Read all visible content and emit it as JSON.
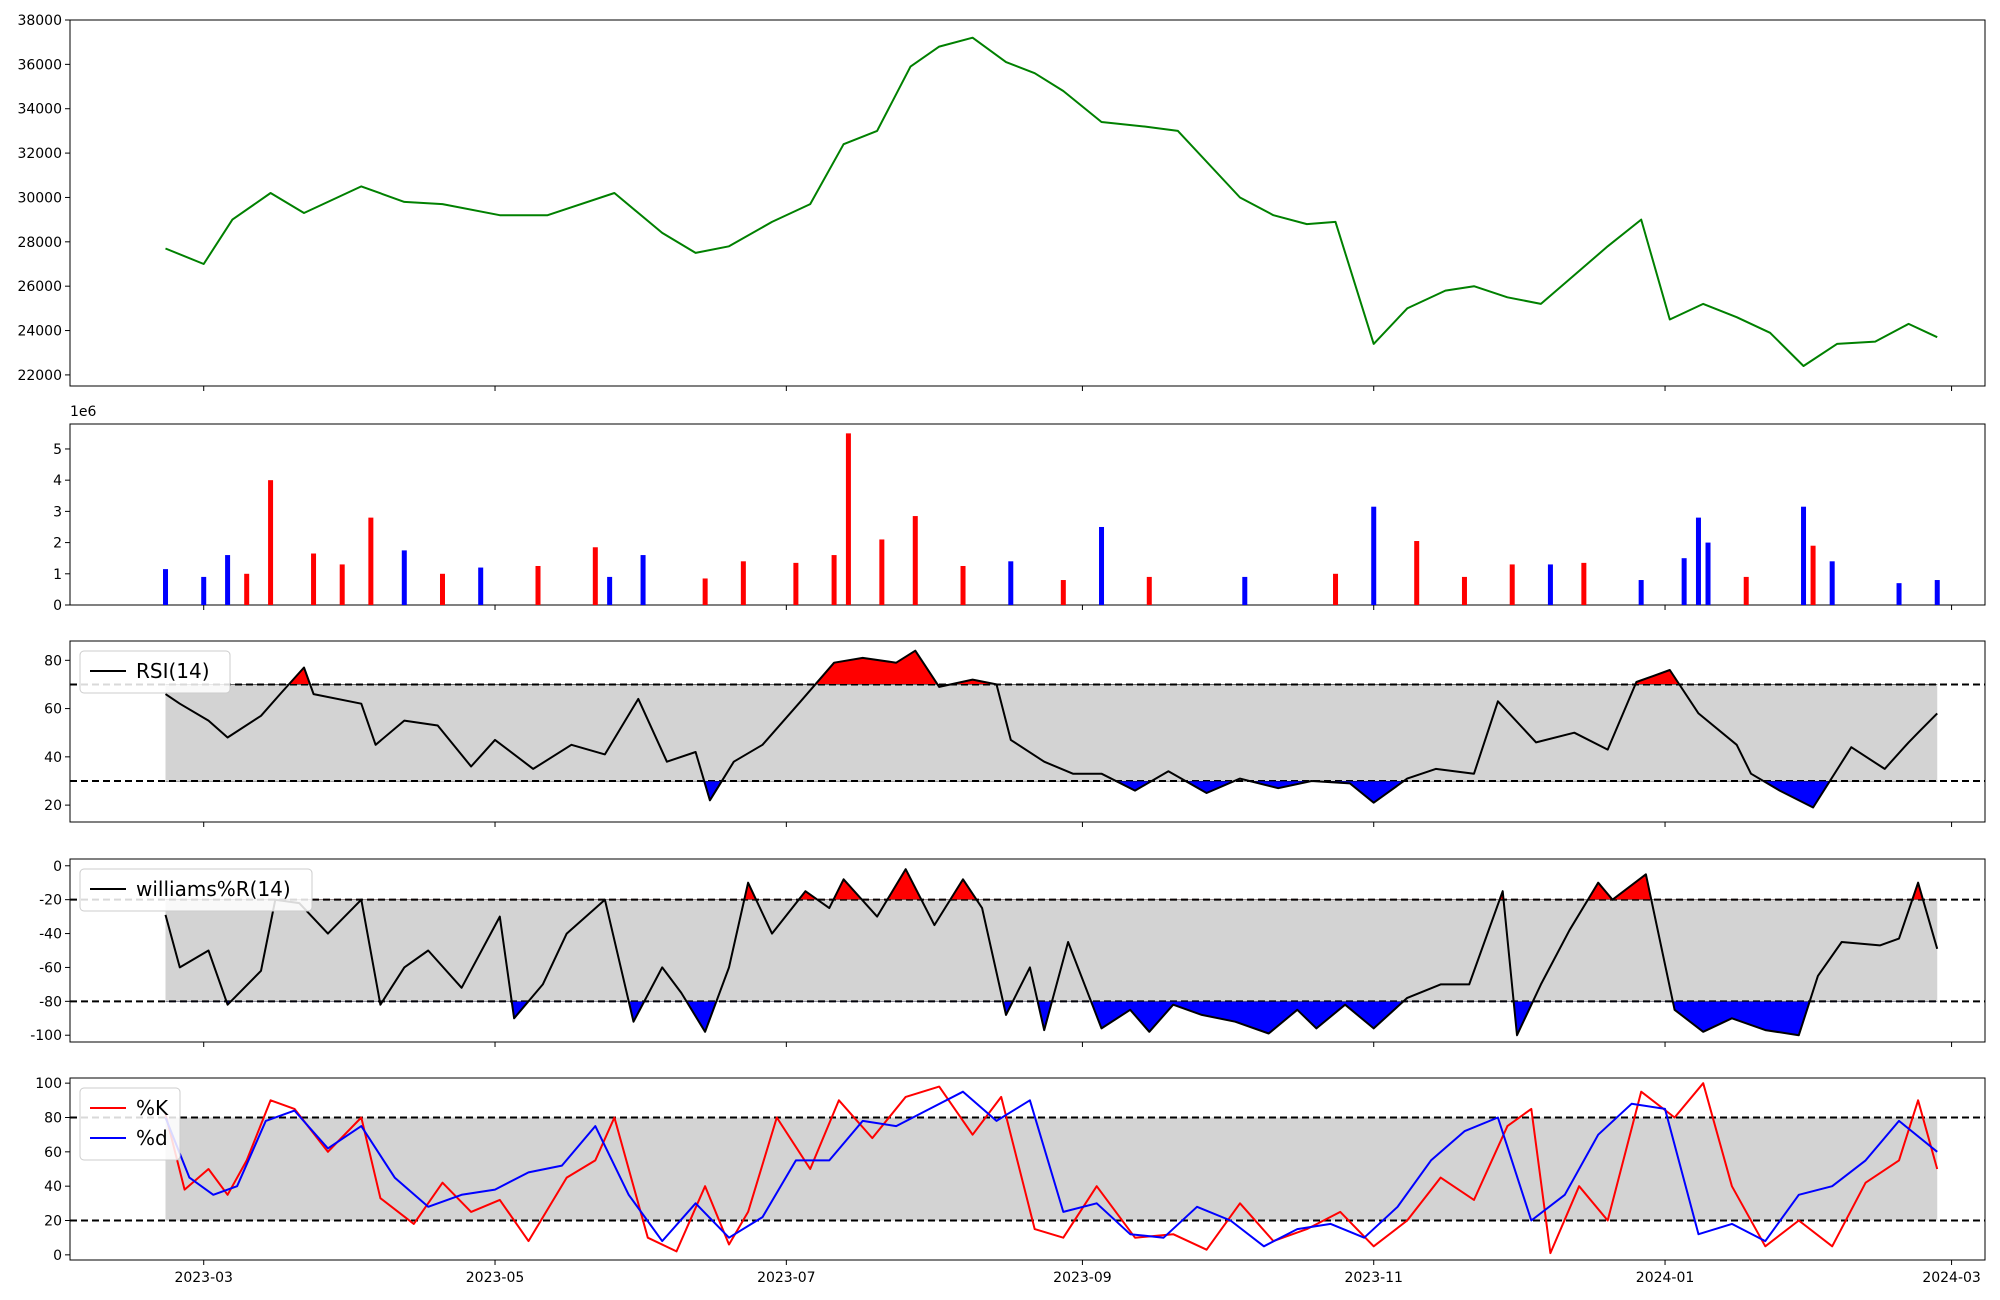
{
  "chart_data": [
    {
      "panel": "price",
      "type": "line",
      "color": "#008000",
      "ylim": [
        21500,
        38000
      ],
      "yticks": [
        22000,
        24000,
        26000,
        28000,
        30000,
        32000,
        34000,
        36000,
        38000
      ],
      "x": [
        "2023-02-21",
        "2023-03-01",
        "2023-03-07",
        "2023-03-15",
        "2023-03-22",
        "2023-04-03",
        "2023-04-12",
        "2023-04-20",
        "2023-05-02",
        "2023-05-12",
        "2023-05-26",
        "2023-06-05",
        "2023-06-12",
        "2023-06-19",
        "2023-06-28",
        "2023-07-06",
        "2023-07-13",
        "2023-07-20",
        "2023-07-27",
        "2023-08-02",
        "2023-08-09",
        "2023-08-16",
        "2023-08-22",
        "2023-08-28",
        "2023-09-05",
        "2023-09-14",
        "2023-09-21",
        "2023-10-04",
        "2023-10-11",
        "2023-10-18",
        "2023-10-24",
        "2023-11-01",
        "2023-11-08",
        "2023-11-16",
        "2023-11-22",
        "2023-11-29",
        "2023-12-06",
        "2023-12-13",
        "2023-12-20",
        "2023-12-27",
        "2024-01-02",
        "2024-01-09",
        "2024-01-16",
        "2024-01-23",
        "2024-01-30",
        "2024-02-06",
        "2024-02-14",
        "2024-02-21",
        "2024-02-27"
      ],
      "y": [
        27700,
        27000,
        29000,
        30200,
        29300,
        30500,
        29800,
        29700,
        29200,
        29200,
        30200,
        28400,
        27500,
        27800,
        28900,
        29700,
        32400,
        33000,
        35900,
        36800,
        37200,
        36100,
        35600,
        34800,
        33400,
        33200,
        33000,
        30000,
        29200,
        28800,
        28900,
        23400,
        25000,
        25800,
        26000,
        25500,
        25200,
        26500,
        27800,
        29000,
        24500,
        25200,
        24600,
        23900,
        22400,
        23400,
        23500,
        24300,
        23700
      ]
    },
    {
      "panel": "volume",
      "type": "bar",
      "ylim": [
        0,
        5.8
      ],
      "yticks": [
        0,
        1,
        2,
        3,
        4,
        5
      ],
      "offset_label": "1e6",
      "colors": {
        "up": "#ff0000",
        "down": "#0000ff",
        "flat": "#000000"
      },
      "x": [
        "2023-02-21",
        "2023-03-01",
        "2023-03-06",
        "2023-03-10",
        "2023-03-15",
        "2023-03-24",
        "2023-03-30",
        "2023-04-05",
        "2023-04-12",
        "2023-04-20",
        "2023-04-28",
        "2023-05-10",
        "2023-05-22",
        "2023-05-25",
        "2023-06-01",
        "2023-06-14",
        "2023-06-22",
        "2023-07-03",
        "2023-07-11",
        "2023-07-14",
        "2023-07-21",
        "2023-07-28",
        "2023-08-07",
        "2023-08-17",
        "2023-08-28",
        "2023-09-05",
        "2023-09-15",
        "2023-10-05",
        "2023-10-24",
        "2023-11-01",
        "2023-11-10",
        "2023-11-20",
        "2023-11-30",
        "2023-12-08",
        "2023-12-15",
        "2023-12-27",
        "2024-01-05",
        "2024-01-08",
        "2024-01-10",
        "2024-01-18",
        "2024-01-30",
        "2024-02-01",
        "2024-02-05",
        "2024-02-19",
        "2024-02-27"
      ],
      "values": [
        1.15,
        0.9,
        1.6,
        1.0,
        4.0,
        1.65,
        1.3,
        2.8,
        1.75,
        1.0,
        1.2,
        1.25,
        1.85,
        0.9,
        1.6,
        0.85,
        1.4,
        1.35,
        1.6,
        5.5,
        2.1,
        2.85,
        1.25,
        1.4,
        0.8,
        2.5,
        0.9,
        0.9,
        1.0,
        3.15,
        2.05,
        0.9,
        1.3,
        1.3,
        1.35,
        0.8,
        1.5,
        2.8,
        2.0,
        0.9,
        3.15,
        1.9,
        1.4,
        0.7,
        0.8
      ],
      "directions": [
        "down",
        "down",
        "down",
        "red",
        "up",
        "up",
        "up",
        "up",
        "down",
        "up",
        "down",
        "up",
        "up",
        "down",
        "down",
        "up",
        "up",
        "up",
        "up",
        "up",
        "up",
        "up",
        "up",
        "down",
        "up",
        "down",
        "up",
        "down",
        "up",
        "down",
        "up",
        "up",
        "up",
        "down",
        "up",
        "down",
        "down",
        "down",
        "down",
        "up",
        "down",
        "up",
        "down",
        "down",
        "down"
      ]
    },
    {
      "panel": "rsi",
      "type": "line",
      "ylim": [
        13,
        88
      ],
      "yticks": [
        20,
        40,
        60,
        80
      ],
      "upper": 70,
      "lower": 30,
      "legend": "RSI(14)",
      "color": "#000000",
      "x": [
        "2023-02-21",
        "2023-02-24",
        "2023-03-02",
        "2023-03-06",
        "2023-03-13",
        "2023-03-17",
        "2023-03-22",
        "2023-03-24",
        "2023-04-03",
        "2023-04-06",
        "2023-04-12",
        "2023-04-19",
        "2023-04-26",
        "2023-05-01",
        "2023-05-09",
        "2023-05-17",
        "2023-05-24",
        "2023-05-31",
        "2023-06-06",
        "2023-06-12",
        "2023-06-15",
        "2023-06-20",
        "2023-06-26",
        "2023-07-04",
        "2023-07-11",
        "2023-07-17",
        "2023-07-24",
        "2023-07-28",
        "2023-08-02",
        "2023-08-09",
        "2023-08-14",
        "2023-08-17",
        "2023-08-24",
        "2023-08-30",
        "2023-09-05",
        "2023-09-12",
        "2023-09-19",
        "2023-09-27",
        "2023-10-04",
        "2023-10-12",
        "2023-10-19",
        "2023-10-27",
        "2023-11-01",
        "2023-11-08",
        "2023-11-14",
        "2023-11-22",
        "2023-11-27",
        "2023-12-05",
        "2023-12-13",
        "2023-12-20",
        "2023-12-26",
        "2024-01-02",
        "2024-01-08",
        "2024-01-16",
        "2024-01-19",
        "2024-01-25",
        "2024-02-01",
        "2024-02-09",
        "2024-02-16",
        "2024-02-21",
        "2024-02-23",
        "2024-02-27"
      ],
      "values": [
        66,
        62,
        55,
        48,
        57,
        66,
        77,
        66,
        62,
        45,
        55,
        53,
        36,
        47,
        35,
        45,
        41,
        64,
        38,
        42,
        22,
        38,
        45,
        63,
        79,
        81,
        79,
        84,
        69,
        72,
        70,
        47,
        38,
        33,
        33,
        26,
        34,
        25,
        31,
        27,
        30,
        29,
        21,
        31,
        35,
        33,
        63,
        46,
        50,
        43,
        71,
        76,
        58,
        45,
        33,
        26,
        19,
        44,
        35,
        46,
        50,
        58
      ]
    },
    {
      "panel": "williams",
      "type": "line",
      "ylim": [
        -104,
        4
      ],
      "yticks": [
        0,
        -20,
        -40,
        -60,
        -80,
        -100
      ],
      "upper": -20,
      "lower": -80,
      "legend": "williams%R(14)",
      "color": "#000000",
      "x": [
        "2023-02-21",
        "2023-02-24",
        "2023-03-02",
        "2023-03-06",
        "2023-03-13",
        "2023-03-16",
        "2023-03-21",
        "2023-03-27",
        "2023-04-03",
        "2023-04-07",
        "2023-04-12",
        "2023-04-17",
        "2023-04-24",
        "2023-05-02",
        "2023-05-05",
        "2023-05-11",
        "2023-05-16",
        "2023-05-24",
        "2023-05-30",
        "2023-06-05",
        "2023-06-09",
        "2023-06-14",
        "2023-06-19",
        "2023-06-23",
        "2023-06-28",
        "2023-07-05",
        "2023-07-10",
        "2023-07-13",
        "2023-07-20",
        "2023-07-26",
        "2023-08-01",
        "2023-08-07",
        "2023-08-11",
        "2023-08-16",
        "2023-08-21",
        "2023-08-24",
        "2023-08-29",
        "2023-09-05",
        "2023-09-11",
        "2023-09-15",
        "2023-09-20",
        "2023-09-26",
        "2023-10-03",
        "2023-10-10",
        "2023-10-16",
        "2023-10-20",
        "2023-10-26",
        "2023-11-01",
        "2023-11-08",
        "2023-11-15",
        "2023-11-21",
        "2023-11-28",
        "2023-12-01",
        "2023-12-06",
        "2023-12-12",
        "2023-12-18",
        "2023-12-21",
        "2023-12-28",
        "2024-01-03",
        "2024-01-09",
        "2024-01-15",
        "2024-01-22",
        "2024-01-29",
        "2024-02-02",
        "2024-02-07",
        "2024-02-15",
        "2024-02-19",
        "2024-02-23",
        "2024-02-27"
      ],
      "values": [
        -29,
        -60,
        -50,
        -82,
        -62,
        -20,
        -22,
        -40,
        -20,
        -82,
        -60,
        -50,
        -72,
        -30,
        -90,
        -70,
        -40,
        -20,
        -92,
        -60,
        -75,
        -98,
        -60,
        -10,
        -40,
        -15,
        -25,
        -8,
        -30,
        -2,
        -35,
        -8,
        -25,
        -88,
        -60,
        -97,
        -45,
        -96,
        -85,
        -98,
        -82,
        -88,
        -92,
        -99,
        -85,
        -96,
        -82,
        -96,
        -78,
        -70,
        -70,
        -15,
        -100,
        -70,
        -38,
        -10,
        -20,
        -5,
        -85,
        -98,
        -90,
        -97,
        -100,
        -65,
        -45,
        -47,
        -43,
        -10,
        -49
      ]
    },
    {
      "panel": "stochastic",
      "type": "line",
      "ylim": [
        -3,
        103
      ],
      "yticks": [
        0,
        20,
        40,
        60,
        80,
        100
      ],
      "upper": 80,
      "lower": 20,
      "series": [
        {
          "name": "%K",
          "color": "#ff0000",
          "x": [
            "2023-02-21",
            "2023-02-25",
            "2023-03-02",
            "2023-03-06",
            "2023-03-10",
            "2023-03-15",
            "2023-03-20",
            "2023-03-27",
            "2023-04-03",
            "2023-04-07",
            "2023-04-14",
            "2023-04-20",
            "2023-04-26",
            "2023-05-02",
            "2023-05-08",
            "2023-05-16",
            "2023-05-22",
            "2023-05-26",
            "2023-06-02",
            "2023-06-08",
            "2023-06-14",
            "2023-06-19",
            "2023-06-23",
            "2023-06-29",
            "2023-07-06",
            "2023-07-12",
            "2023-07-19",
            "2023-07-26",
            "2023-08-02",
            "2023-08-09",
            "2023-08-15",
            "2023-08-22",
            "2023-08-28",
            "2023-09-04",
            "2023-09-12",
            "2023-09-20",
            "2023-09-27",
            "2023-10-04",
            "2023-10-11",
            "2023-10-18",
            "2023-10-25",
            "2023-11-01",
            "2023-11-08",
            "2023-11-15",
            "2023-11-22",
            "2023-11-29",
            "2023-12-04",
            "2023-12-08",
            "2023-12-14",
            "2023-12-20",
            "2023-12-27",
            "2024-01-03",
            "2024-01-09",
            "2024-01-15",
            "2024-01-22",
            "2024-01-29",
            "2024-02-05",
            "2024-02-12",
            "2024-02-19",
            "2024-02-23",
            "2024-02-27"
          ],
          "values": [
            82,
            38,
            50,
            35,
            55,
            90,
            85,
            60,
            80,
            33,
            18,
            42,
            25,
            32,
            8,
            45,
            55,
            80,
            10,
            2,
            40,
            6,
            25,
            80,
            50,
            90,
            68,
            92,
            98,
            70,
            92,
            15,
            10,
            40,
            10,
            12,
            3,
            30,
            8,
            15,
            25,
            5,
            20,
            45,
            32,
            75,
            85,
            1,
            40,
            20,
            95,
            80,
            100,
            40,
            5,
            20,
            5,
            42,
            55,
            90,
            50
          ]
        },
        {
          "name": "%d",
          "color": "#0000ff",
          "x": [
            "2023-02-21",
            "2023-02-26",
            "2023-03-03",
            "2023-03-08",
            "2023-03-14",
            "2023-03-20",
            "2023-03-27",
            "2023-04-03",
            "2023-04-10",
            "2023-04-17",
            "2023-04-24",
            "2023-05-01",
            "2023-05-08",
            "2023-05-15",
            "2023-05-22",
            "2023-05-29",
            "2023-06-05",
            "2023-06-12",
            "2023-06-19",
            "2023-06-26",
            "2023-07-03",
            "2023-07-10",
            "2023-07-17",
            "2023-07-24",
            "2023-07-31",
            "2023-08-07",
            "2023-08-14",
            "2023-08-21",
            "2023-08-28",
            "2023-09-04",
            "2023-09-11",
            "2023-09-18",
            "2023-09-25",
            "2023-10-02",
            "2023-10-09",
            "2023-10-16",
            "2023-10-23",
            "2023-10-30",
            "2023-11-06",
            "2023-11-13",
            "2023-11-20",
            "2023-11-27",
            "2023-12-04",
            "2023-12-11",
            "2023-12-18",
            "2023-12-25",
            "2024-01-01",
            "2024-01-08",
            "2024-01-15",
            "2024-01-22",
            "2024-01-29",
            "2024-02-05",
            "2024-02-12",
            "2024-02-19",
            "2024-02-27"
          ],
          "values": [
            80,
            45,
            35,
            40,
            78,
            84,
            62,
            75,
            45,
            28,
            35,
            38,
            48,
            52,
            75,
            35,
            8,
            30,
            10,
            22,
            55,
            55,
            78,
            75,
            85,
            95,
            78,
            90,
            25,
            30,
            12,
            10,
            28,
            20,
            5,
            15,
            18,
            10,
            28,
            55,
            72,
            80,
            20,
            35,
            70,
            88,
            85,
            12,
            18,
            8,
            35,
            40,
            55,
            78,
            60
          ]
        }
      ]
    }
  ],
  "x_axis": {
    "tick_labels": [
      "2023-03",
      "2023-05",
      "2023-07",
      "2023-09",
      "2023-11",
      "2024-01",
      "2024-03"
    ]
  }
}
